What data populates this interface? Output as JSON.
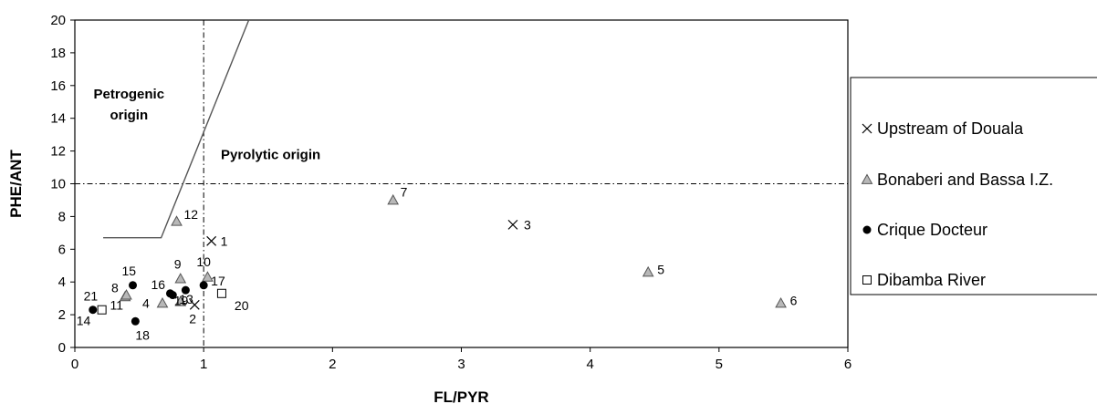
{
  "chart_data": {
    "type": "scatter",
    "xlabel": "FL/PYR",
    "ylabel": "PHE/ANT",
    "xlim": [
      0,
      6
    ],
    "ylim": [
      0,
      20
    ],
    "x_ticks": [
      "0",
      "1",
      "2",
      "3",
      "4",
      "5",
      "6"
    ],
    "y_ticks": [
      "0",
      "2",
      "4",
      "6",
      "8",
      "10",
      "12",
      "14",
      "16",
      "18",
      "20"
    ],
    "grid": false,
    "legend_position": "right",
    "reference_lines": [
      {
        "orientation": "vertical",
        "value": 1,
        "style": "dash-dot"
      },
      {
        "orientation": "horizontal",
        "value": 10,
        "style": "dash-dot"
      }
    ],
    "boundary_line": [
      [
        0.22,
        6.7
      ],
      [
        0.67,
        6.7
      ],
      [
        1.35,
        20
      ]
    ],
    "annotations": [
      {
        "text_lines": [
          "Petrogenic",
          "origin"
        ],
        "x": 0.42,
        "y": 15.2
      },
      {
        "text_lines": [
          "Pyrolytic origin"
        ],
        "x": 1.52,
        "y": 11.5
      }
    ],
    "series": [
      {
        "name": "Upstream of Douala",
        "marker": "x",
        "points": [
          {
            "label": "1",
            "x": 1.06,
            "y": 6.5
          },
          {
            "label": "2",
            "x": 0.93,
            "y": 2.6
          },
          {
            "label": "3",
            "x": 3.4,
            "y": 7.5
          }
        ]
      },
      {
        "name": "Bonaberi and Bassa I.Z.",
        "marker": "triangle",
        "points": [
          {
            "label": "4",
            "x": 0.68,
            "y": 2.7
          },
          {
            "label": "5",
            "x": 4.45,
            "y": 4.6
          },
          {
            "label": "6",
            "x": 5.48,
            "y": 2.7
          },
          {
            "label": "7",
            "x": 2.47,
            "y": 9.0
          },
          {
            "label": "8",
            "x": 0.39,
            "y": 3.1
          },
          {
            "label": "9",
            "x": 0.82,
            "y": 4.2
          },
          {
            "label": "10",
            "x": 1.03,
            "y": 4.3
          },
          {
            "label": "11",
            "x": 0.4,
            "y": 3.2
          },
          {
            "label": "12",
            "x": 0.79,
            "y": 7.7
          },
          {
            "label": "19",
            "x": 0.82,
            "y": 2.8
          }
        ]
      },
      {
        "name": "Crique Docteur",
        "marker": "circle",
        "points": [
          {
            "label": "13",
            "x": 0.86,
            "y": 3.5
          },
          {
            "label": "14",
            "x": 0.14,
            "y": 2.3
          },
          {
            "label": "15",
            "x": 0.45,
            "y": 3.8
          },
          {
            "label": "16",
            "x": 0.74,
            "y": 3.3
          },
          {
            "label": "17",
            "x": 1.0,
            "y": 3.8
          },
          {
            "label": "18",
            "x": 0.47,
            "y": 1.6
          },
          {
            "label": "",
            "x": 0.76,
            "y": 3.2
          }
        ]
      },
      {
        "name": "Dibamba River",
        "marker": "square",
        "points": [
          {
            "label": "20",
            "x": 1.14,
            "y": 3.3
          },
          {
            "label": "21",
            "x": 0.21,
            "y": 2.3
          }
        ]
      }
    ]
  },
  "colors": {
    "axis": "#000000",
    "boundary": "#555555",
    "triangle_fill": "#b8b8b8",
    "circle_fill": "#000000",
    "square_fill": "#ffffff"
  }
}
